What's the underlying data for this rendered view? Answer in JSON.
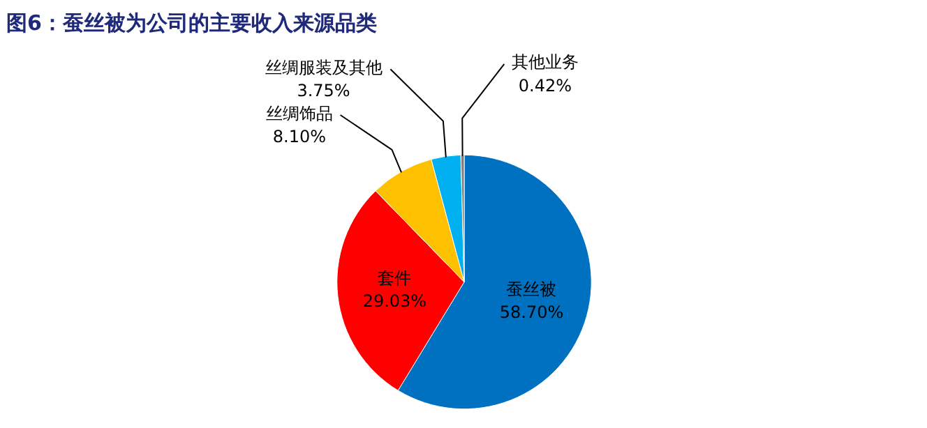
{
  "chart_data": {
    "type": "pie",
    "title": "图6：蚕丝被为公司的主要收入来源品类",
    "categories": [
      "蚕丝被",
      "套件",
      "丝绸饰品",
      "丝绸服装及其他",
      "其他业务"
    ],
    "values": [
      58.7,
      29.03,
      8.1,
      3.75,
      0.42
    ],
    "colors": [
      "#0070c0",
      "#ff0000",
      "#ffc000",
      "#00b0f0",
      "#808080"
    ],
    "value_labels": [
      "58.70%",
      "29.03%",
      "8.10%",
      "3.75%",
      "0.42%"
    ]
  }
}
